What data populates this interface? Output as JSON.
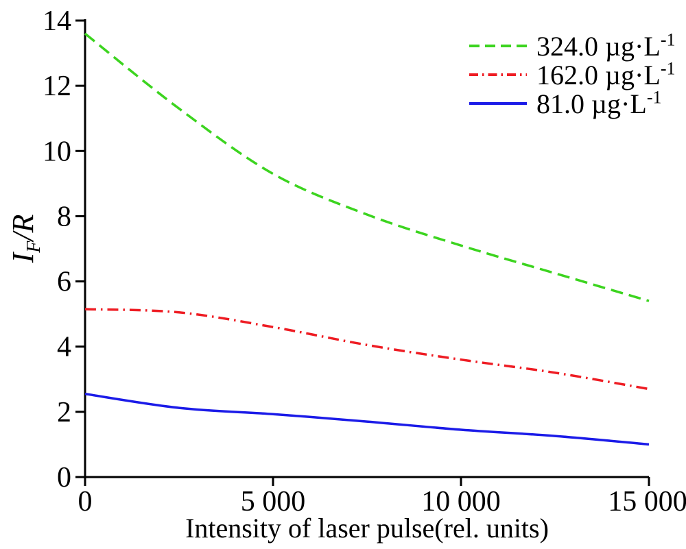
{
  "chart_data": {
    "type": "line",
    "title": "",
    "xlabel": "Intensity of laser pulse(rel. units)",
    "ylabel": {
      "main": "I",
      "sub": "F",
      "rest": "/R"
    },
    "xlim": [
      0,
      15000
    ],
    "ylim": [
      0,
      14
    ],
    "grid": false,
    "legend_position": "top-right",
    "axis_color": "#000000",
    "background": "#ffffff",
    "x_ticks": [
      {
        "value": 0,
        "label": "0"
      },
      {
        "value": 5000,
        "label": "5 000"
      },
      {
        "value": 10000,
        "label": "10 000"
      },
      {
        "value": 15000,
        "label": "15 000"
      }
    ],
    "y_ticks": [
      {
        "value": 0,
        "label": "0"
      },
      {
        "value": 2,
        "label": "2"
      },
      {
        "value": 4,
        "label": "4"
      },
      {
        "value": 6,
        "label": "6"
      },
      {
        "value": 8,
        "label": "8"
      },
      {
        "value": 10,
        "label": "10"
      },
      {
        "value": 12,
        "label": "12"
      },
      {
        "value": 14,
        "label": "14"
      }
    ],
    "x": [
      0,
      2500,
      5000,
      7500,
      10000,
      12500,
      15000
    ],
    "series": [
      {
        "label": "324.0 µg·L",
        "sup": "-1",
        "color": "#3cd41f",
        "style": "dashed",
        "values": [
          13.6,
          11.3,
          9.3,
          8.05,
          7.1,
          6.25,
          5.4
        ]
      },
      {
        "label": "162.0 µg·L",
        "sup": "-1",
        "color": "#ee1c23",
        "style": "dash-dot",
        "values": [
          5.15,
          5.05,
          4.6,
          4.05,
          3.6,
          3.2,
          2.7
        ]
      },
      {
        "label": "81.0 µg·L",
        "sup": "-1",
        "color": "#1b1be8",
        "style": "solid",
        "values": [
          2.55,
          2.12,
          1.93,
          1.7,
          1.45,
          1.26,
          1.0
        ]
      }
    ]
  }
}
